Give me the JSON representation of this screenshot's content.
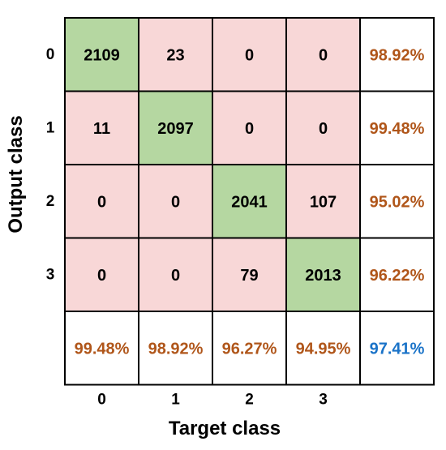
{
  "chart_data": {
    "type": "heatmap",
    "xlabel": "Target class",
    "ylabel": "Output class",
    "x_ticks": [
      "0",
      "1",
      "2",
      "3"
    ],
    "y_ticks": [
      "0",
      "1",
      "2",
      "3"
    ],
    "matrix": [
      [
        2109,
        23,
        0,
        0
      ],
      [
        11,
        2097,
        0,
        0
      ],
      [
        0,
        0,
        2041,
        107
      ],
      [
        0,
        0,
        79,
        2013
      ]
    ],
    "row_summary": [
      "98.92%",
      "99.48%",
      "95.02%",
      "96.22%"
    ],
    "column_summary": [
      "99.48%",
      "98.92%",
      "96.27%",
      "94.95%"
    ],
    "overall": "97.41%",
    "colors": {
      "diagonal": "#b5d7a1",
      "off_diagonal": "#f8d7d7",
      "summary_bg": "#ffffff",
      "percent_text": "#b0561a",
      "overall_text": "#1a73c8",
      "count_text": "#000000",
      "grid": "#000000"
    }
  }
}
